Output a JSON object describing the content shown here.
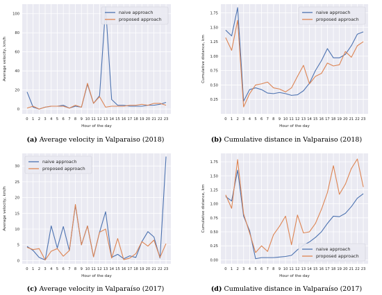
{
  "colors": {
    "naive": "#4c72b0",
    "proposed": "#dd8452",
    "plot_bg": "#eaeaf2",
    "grid": "#ffffff"
  },
  "captions": [
    {
      "tag": "(a)",
      "text": "Average velocity in Valparaiso (2018)"
    },
    {
      "tag": "(b)",
      "text": "Cumulative distance in Valparaiso (2018)"
    },
    {
      "tag": "(c)",
      "text": "Average velocity in Valparaíso (2017)"
    },
    {
      "tag": "(d)",
      "text": "Cumulative distance in Valparaíso (2017)"
    }
  ],
  "chart_data": [
    {
      "type": "line",
      "title": "",
      "xlabel": "Hour of the day",
      "ylabel": "Average velocity, km/h",
      "legend_position": "top-right",
      "x": [
        0,
        1,
        2,
        3,
        4,
        5,
        6,
        7,
        8,
        9,
        10,
        11,
        12,
        13,
        14,
        15,
        16,
        17,
        18,
        19,
        20,
        21,
        22,
        23
      ],
      "ylim": [
        -5,
        110
      ],
      "yticks": [
        0,
        20,
        40,
        60,
        80,
        100
      ],
      "series": [
        {
          "name": "naive approach",
          "color_key": "naive",
          "values": [
            18,
            2,
            0,
            2,
            3,
            3,
            4,
            1,
            3,
            2,
            26,
            6,
            14,
            107,
            10,
            4,
            4,
            3,
            3,
            3,
            4,
            4,
            5,
            7
          ]
        },
        {
          "name": "proposed approach",
          "color_key": "proposed",
          "values": [
            1,
            3,
            0,
            2,
            3,
            3,
            3,
            1,
            4,
            2,
            27,
            6,
            13,
            2,
            3,
            3,
            3,
            4,
            4,
            5,
            4,
            6,
            6,
            4
          ]
        }
      ]
    },
    {
      "type": "line",
      "title": "",
      "xlabel": "Hour of the day",
      "ylabel": "Cumulative distance, km",
      "legend_position": "top-right",
      "x": [
        0,
        1,
        2,
        3,
        4,
        5,
        6,
        7,
        8,
        9,
        10,
        11,
        12,
        13,
        14,
        15,
        16,
        17,
        18,
        19,
        20,
        21,
        22,
        23
      ],
      "ylim": [
        0,
        1.9
      ],
      "yticks": [
        0.25,
        0.5,
        0.75,
        1.0,
        1.25,
        1.5,
        1.75
      ],
      "series": [
        {
          "name": "naive approach",
          "color_key": "naive",
          "values": [
            1.45,
            1.35,
            1.84,
            0.22,
            0.42,
            0.45,
            0.42,
            0.36,
            0.35,
            0.37,
            0.35,
            0.32,
            0.33,
            0.4,
            0.53,
            0.75,
            0.92,
            1.13,
            0.97,
            0.97,
            1.03,
            1.18,
            1.38,
            1.42
          ]
        },
        {
          "name": "proposed approach",
          "color_key": "proposed",
          "values": [
            1.32,
            1.1,
            1.62,
            0.12,
            0.35,
            0.5,
            0.52,
            0.55,
            0.45,
            0.43,
            0.38,
            0.45,
            0.65,
            0.84,
            0.52,
            0.65,
            0.7,
            0.88,
            0.83,
            0.85,
            1.08,
            0.98,
            1.18,
            1.25
          ]
        }
      ]
    },
    {
      "type": "line",
      "title": "",
      "xlabel": "Hour of the day",
      "ylabel": "Average velocity, km/h",
      "legend_position": "top-left",
      "x": [
        0,
        1,
        2,
        3,
        4,
        5,
        6,
        7,
        8,
        9,
        10,
        11,
        12,
        13,
        14,
        15,
        16,
        17,
        18,
        19,
        20,
        21,
        22,
        23
      ],
      "ylim": [
        -1,
        34
      ],
      "yticks": [
        0,
        5,
        10,
        15,
        20,
        25,
        30
      ],
      "series": [
        {
          "name": "naive approach",
          "color_key": "naive",
          "values": [
            4.5,
            3.2,
            1.0,
            0.2,
            11.0,
            4.0,
            10.8,
            3.2,
            17.5,
            5.0,
            11.0,
            1.2,
            9.0,
            15.5,
            1.0,
            2.0,
            0.6,
            1.5,
            1.0,
            6.0,
            9.2,
            7.5,
            0.8,
            33.0
          ]
        },
        {
          "name": "proposed approach",
          "color_key": "proposed",
          "values": [
            4.2,
            3.5,
            3.8,
            0.2,
            3.0,
            3.8,
            1.4,
            3.2,
            17.8,
            5.0,
            11.0,
            1.2,
            9.0,
            10.0,
            0.8,
            7.0,
            0.3,
            0.8,
            2.2,
            6.0,
            4.6,
            6.5,
            1.0,
            5.4
          ]
        }
      ]
    },
    {
      "type": "line",
      "title": "",
      "xlabel": "Hour of the day",
      "ylabel": "Cumulative distance, km",
      "legend_position": "bottom-right",
      "x": [
        0,
        1,
        2,
        3,
        4,
        5,
        6,
        7,
        8,
        9,
        10,
        11,
        12,
        13,
        14,
        15,
        16,
        17,
        18,
        19,
        20,
        21,
        22,
        23
      ],
      "ylim": [
        -0.07,
        1.9
      ],
      "yticks": [
        0.0,
        0.25,
        0.5,
        0.75,
        1.0,
        1.25,
        1.5,
        1.75
      ],
      "series": [
        {
          "name": "naive approach",
          "color_key": "naive",
          "values": [
            1.13,
            1.05,
            1.6,
            0.78,
            0.52,
            0.02,
            0.04,
            0.04,
            0.04,
            0.05,
            0.06,
            0.08,
            0.18,
            0.26,
            0.32,
            0.4,
            0.5,
            0.65,
            0.78,
            0.77,
            0.83,
            0.95,
            1.1,
            1.18
          ]
        },
        {
          "name": "proposed approach",
          "color_key": "proposed",
          "values": [
            1.16,
            0.92,
            1.79,
            0.82,
            0.48,
            0.13,
            0.25,
            0.15,
            0.45,
            0.6,
            0.78,
            0.27,
            0.8,
            0.48,
            0.5,
            0.65,
            0.9,
            1.2,
            1.68,
            1.17,
            1.35,
            1.63,
            1.8,
            1.3
          ]
        }
      ]
    }
  ]
}
